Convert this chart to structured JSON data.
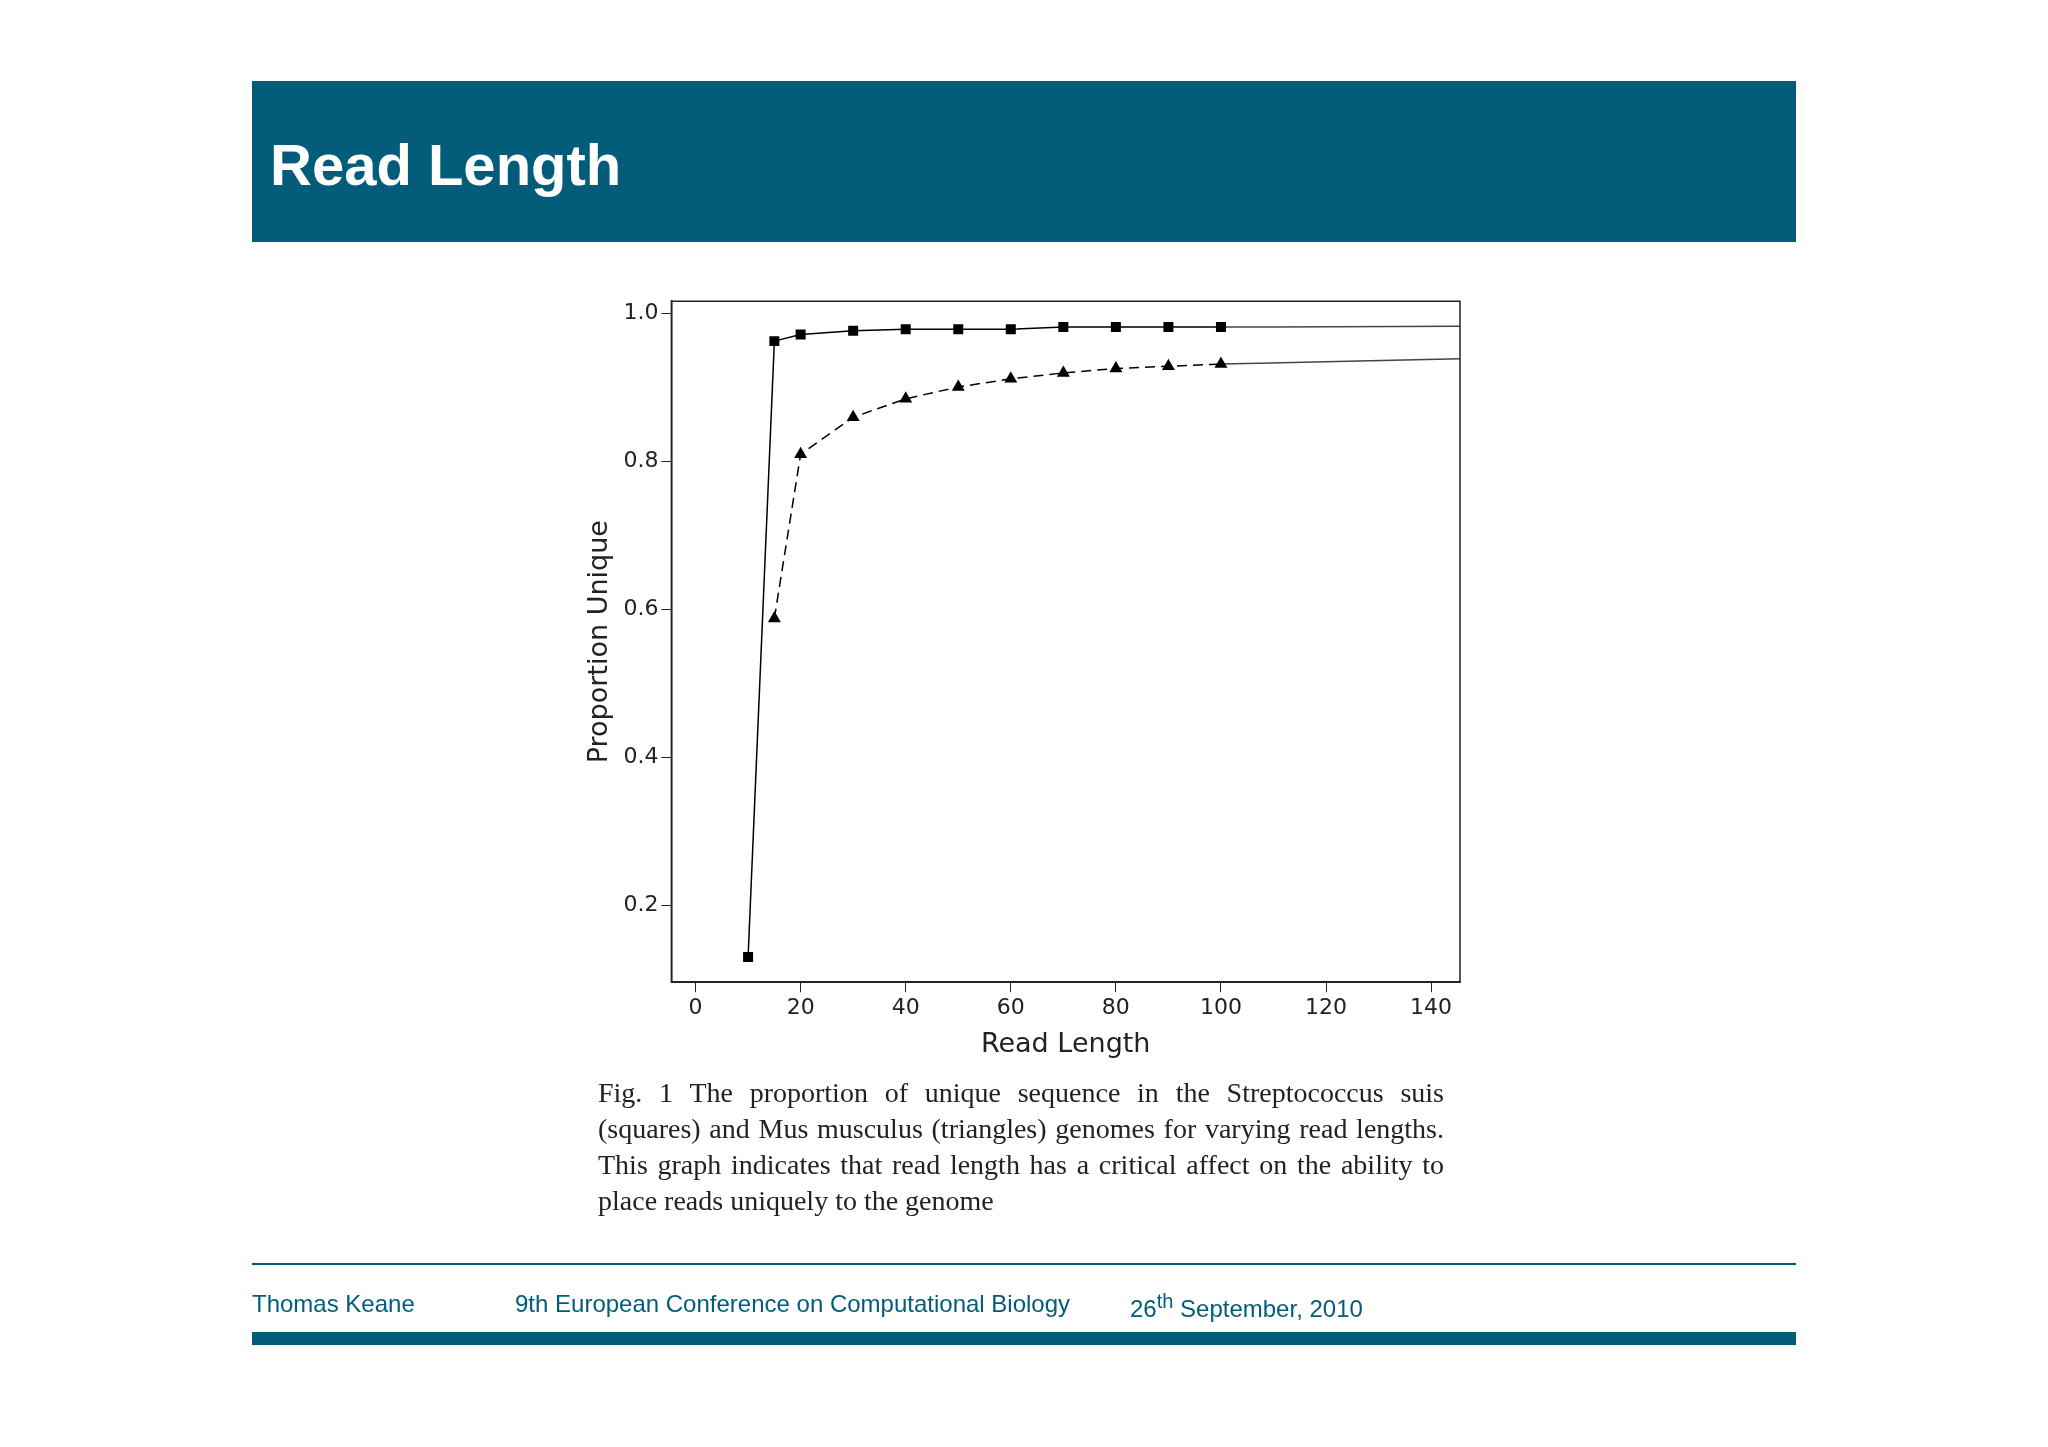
{
  "chart_data": {
    "type": "line",
    "title": "Read Length",
    "xlabel": "Read Length",
    "ylabel": "Proportion Unique",
    "xlim": [
      -4.6,
      145.5
    ],
    "ylim": [
      0.096,
      1.017
    ],
    "xticks": [
      0,
      20,
      40,
      60,
      80,
      100,
      120,
      140
    ],
    "yticks": [
      0.2,
      0.4,
      0.6,
      0.8,
      {
        "value": 1,
        "label": "1.0"
      }
    ],
    "grid": false,
    "legend": false,
    "series": [
      {
        "type": "line",
        "color": "#000000",
        "marker": "square",
        "line_style": "solid",
        "x": [
          10,
          15,
          20,
          30,
          40,
          50,
          60,
          70,
          80,
          90,
          100
        ],
        "values": [
          0.13,
          0.963,
          0.972,
          0.977,
          0.979,
          0.979,
          0.979,
          0.982,
          0.982,
          0.982,
          0.982
        ]
      },
      {
        "type": "line",
        "color": "#000000",
        "marker": "triangle",
        "line_style": "dashed",
        "x": [
          15,
          20,
          30,
          40,
          50,
          60,
          70,
          80,
          90,
          100
        ],
        "values": [
          0.588,
          0.81,
          0.86,
          0.885,
          0.901,
          0.912,
          0.92,
          0.926,
          0.929,
          0.932
        ]
      },
      {
        "type": "line",
        "color": "#444444",
        "marker": "none",
        "line_style": "solid",
        "x": [
          100,
          145.5
        ],
        "values": [
          0.982,
          0.983
        ]
      },
      {
        "type": "line",
        "color": "#444444",
        "marker": "none",
        "line_style": "solid",
        "x": [
          100,
          145.5
        ],
        "values": [
          0.932,
          0.939
        ]
      }
    ],
    "annotations": [
      "Fig. 1  The proportion of unique sequence in the Streptococcus suis (squares) and Mus musculus (triangles) genomes for varying read lengths. This graph indicates that read length has a critical affect on the ability to place reads uniquely to the genome",
      "Thomas Keane",
      "9th European Conference on Computational Biology",
      "26$^{th}$ September, 2010"
    ]
  }
}
